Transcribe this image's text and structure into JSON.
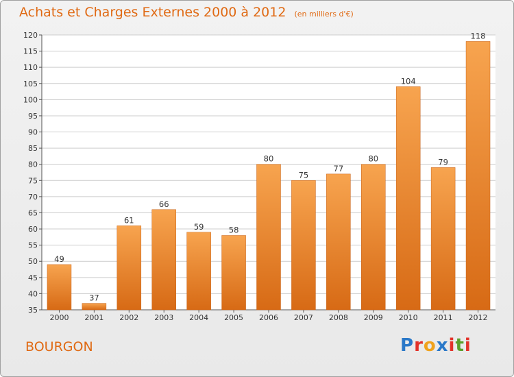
{
  "header": {
    "title": "Achats et Charges Externes 2000 à 2012",
    "unit": "(en milliers d'€)"
  },
  "footer": {
    "place": "BOURGON",
    "logo_letters": [
      "P",
      "r",
      "o",
      "x",
      "i",
      "t",
      "i"
    ],
    "logo_colors": [
      "#2a78c8",
      "#e2322a",
      "#f0a21c",
      "#2a78c8",
      "#e2322a",
      "#5aa02c",
      "#e2322a"
    ]
  },
  "colors": {
    "bar_top": "#f7a44f",
    "bar_bottom": "#d76a15",
    "title": "#e06a14",
    "grid": "#cccccc"
  },
  "chart_data": {
    "type": "bar",
    "title": "Achats et Charges Externes 2000 à 2012",
    "subtitle": "(en milliers d'€)",
    "categories": [
      "2000",
      "2001",
      "2002",
      "2003",
      "2004",
      "2005",
      "2006",
      "2007",
      "2008",
      "2009",
      "2010",
      "2011",
      "2012"
    ],
    "values": [
      49,
      37,
      61,
      66,
      59,
      58,
      80,
      75,
      77,
      80,
      104,
      79,
      118
    ],
    "ylim": [
      35,
      120
    ],
    "yticks": [
      35,
      40,
      45,
      50,
      55,
      60,
      65,
      70,
      75,
      80,
      85,
      90,
      95,
      100,
      105,
      110,
      115,
      120
    ],
    "grid": true,
    "data_labels": true
  }
}
